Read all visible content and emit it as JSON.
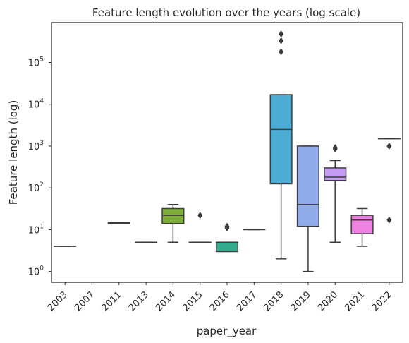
{
  "chart_data": {
    "type": "box",
    "title": "Feature length evolution over the years (log scale)",
    "xlabel": "paper_year",
    "ylabel": "Feature length (log)",
    "yscale": "log",
    "ylim": [
      0.55,
      900000
    ],
    "y_ticks": [
      {
        "value": 1,
        "base": "10",
        "exp": "0"
      },
      {
        "value": 10,
        "base": "10",
        "exp": "1"
      },
      {
        "value": 100,
        "base": "10",
        "exp": "2"
      },
      {
        "value": 1000,
        "base": "10",
        "exp": "3"
      },
      {
        "value": 10000,
        "base": "10",
        "exp": "4"
      },
      {
        "value": 100000,
        "base": "10",
        "exp": "5"
      }
    ],
    "grid": false,
    "categories": [
      "2003",
      "2007",
      "2011",
      "2013",
      "2014",
      "2015",
      "2016",
      "2017",
      "2018",
      "2019",
      "2020",
      "2021",
      "2022"
    ],
    "boxes": [
      {
        "year": "2003",
        "color": "#e377c2",
        "wlo": 4,
        "q1": 4,
        "med": 4,
        "q3": 4,
        "whi": 4,
        "fliers": []
      },
      {
        "year": "2007",
        "color": "#f08a80",
        "wlo": null,
        "q1": null,
        "med": null,
        "q3": null,
        "whi": null,
        "fliers": []
      },
      {
        "year": "2011",
        "color": "#d89a5a",
        "wlo": 14,
        "q1": 14,
        "med": 14.5,
        "q3": 15,
        "whi": 15,
        "fliers": []
      },
      {
        "year": "2013",
        "color": "#bba03a",
        "wlo": 5,
        "q1": 5,
        "med": 5,
        "q3": 5,
        "whi": 5,
        "fliers": []
      },
      {
        "year": "2014",
        "color": "#7fae3a",
        "wlo": 5,
        "q1": 14,
        "med": 22,
        "q3": 32,
        "whi": 40,
        "fliers": []
      },
      {
        "year": "2015",
        "color": "#3bb262",
        "wlo": 5,
        "q1": 5,
        "med": 5,
        "q3": 5,
        "whi": 5,
        "fliers": [
          22
        ]
      },
      {
        "year": "2016",
        "color": "#35ab8e",
        "wlo": 3,
        "q1": 3,
        "med": 3,
        "q3": 5,
        "whi": 5,
        "fliers": [
          11,
          12
        ]
      },
      {
        "year": "2017",
        "color": "#38ada7",
        "wlo": 10,
        "q1": 10,
        "med": 10,
        "q3": 10,
        "whi": 10,
        "fliers": []
      },
      {
        "year": "2018",
        "color": "#4bacd6",
        "wlo": 2,
        "q1": 125,
        "med": 2500,
        "q3": 17000,
        "whi": 17000,
        "fliers": [
          180000,
          330000,
          480000
        ]
      },
      {
        "year": "2019",
        "color": "#8fabeb",
        "wlo": 1,
        "q1": 12,
        "med": 40,
        "q3": 1000,
        "whi": 1000,
        "fliers": []
      },
      {
        "year": "2020",
        "color": "#c39bf2",
        "wlo": 5,
        "q1": 150,
        "med": 180,
        "q3": 300,
        "whi": 450,
        "fliers": [
          850,
          920
        ]
      },
      {
        "year": "2021",
        "color": "#ee82e0",
        "wlo": 4,
        "q1": 8,
        "med": 17,
        "q3": 22,
        "whi": 32,
        "fliers": []
      },
      {
        "year": "2022",
        "color": "#f07fb8",
        "wlo": 1500,
        "q1": 1500,
        "med": 1500,
        "q3": 1500,
        "whi": 1500,
        "fliers": [
          17,
          1000
        ]
      }
    ]
  }
}
